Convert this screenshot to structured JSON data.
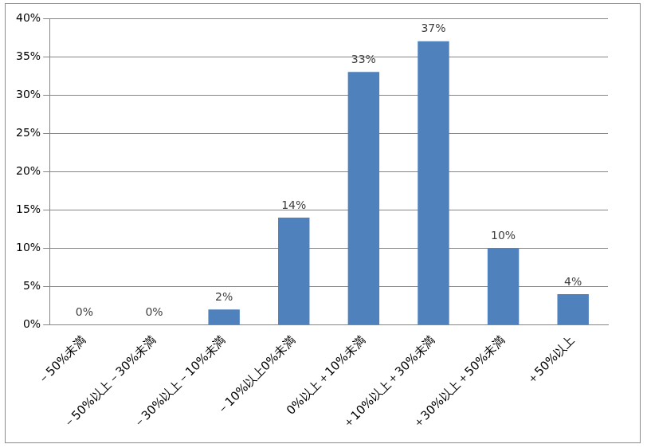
{
  "chart_data": {
    "type": "bar",
    "categories": [
      "－50%未満",
      "－50%以上－30%未満",
      "－30%以上－10%未満",
      "－10%以上0%未満",
      "0%以上＋10%未満",
      "＋10%以上＋30%未満",
      "＋30%以上＋50%未満",
      "＋50%以上"
    ],
    "values": [
      0,
      0,
      2,
      14,
      33,
      37,
      10,
      4
    ],
    "value_labels": [
      "0%",
      "0%",
      "2%",
      "14%",
      "33%",
      "37%",
      "10%",
      "4%"
    ],
    "data_labels": true,
    "color": "#4f81bd",
    "ylim": [
      0,
      40
    ],
    "yticks": [
      {
        "value": 0,
        "label": "0%"
      },
      {
        "value": 5,
        "label": "5%"
      },
      {
        "value": 10,
        "label": "10%"
      },
      {
        "value": 15,
        "label": "15%"
      },
      {
        "value": 20,
        "label": "20%"
      },
      {
        "value": 25,
        "label": "25%"
      },
      {
        "value": 30,
        "label": "30%"
      },
      {
        "value": 35,
        "label": "35%"
      },
      {
        "value": 40,
        "label": "40%"
      }
    ],
    "grid": true
  }
}
